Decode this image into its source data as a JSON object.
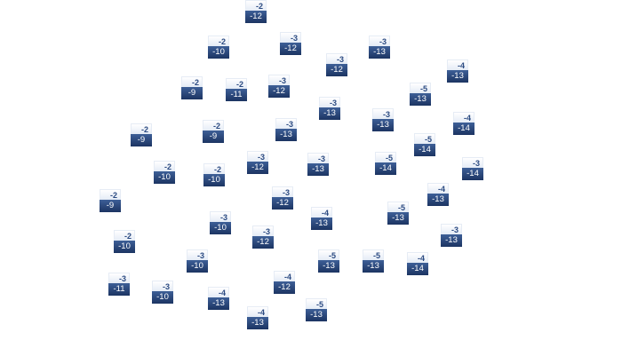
{
  "colors": {
    "label_top_text": "#2c4b82",
    "label_bottom_bg": "#1c3462",
    "label_bottom_text": "#ffffff"
  },
  "nodes": [
    {
      "a": "-2",
      "b": "-12"
    },
    {
      "a": "-2",
      "b": "-10"
    },
    {
      "a": "-3",
      "b": "-12"
    },
    {
      "a": "-3",
      "b": "-12"
    },
    {
      "a": "-3",
      "b": "-13"
    },
    {
      "a": "-4",
      "b": "-13"
    },
    {
      "a": "-2",
      "b": "-9"
    },
    {
      "a": "-2",
      "b": "-11"
    },
    {
      "a": "-3",
      "b": "-12"
    },
    {
      "a": "-5",
      "b": "-13"
    },
    {
      "a": "-3",
      "b": "-13"
    },
    {
      "a": "-3",
      "b": "-13"
    },
    {
      "a": "-4",
      "b": "-14"
    },
    {
      "a": "-2",
      "b": "-9"
    },
    {
      "a": "-2",
      "b": "-9"
    },
    {
      "a": "-3",
      "b": "-13"
    },
    {
      "a": "-5",
      "b": "-14"
    },
    {
      "a": "-3",
      "b": "-12"
    },
    {
      "a": "-3",
      "b": "-13"
    },
    {
      "a": "-5",
      "b": "-14"
    },
    {
      "a": "-3",
      "b": "-14"
    },
    {
      "a": "-2",
      "b": "-10"
    },
    {
      "a": "-2",
      "b": "-10"
    },
    {
      "a": "-3",
      "b": "-12"
    },
    {
      "a": "-4",
      "b": "-13"
    },
    {
      "a": "-2",
      "b": "-9"
    },
    {
      "a": "-4",
      "b": "-13"
    },
    {
      "a": "-5",
      "b": "-13"
    },
    {
      "a": "-3",
      "b": "-10"
    },
    {
      "a": "-3",
      "b": "-12"
    },
    {
      "a": "-3",
      "b": "-13"
    },
    {
      "a": "-2",
      "b": "-10"
    },
    {
      "a": "-3",
      "b": "-10"
    },
    {
      "a": "-5",
      "b": "-13"
    },
    {
      "a": "-5",
      "b": "-13"
    },
    {
      "a": "-4",
      "b": "-14"
    },
    {
      "a": "-3",
      "b": "-11"
    },
    {
      "a": "-3",
      "b": "-10"
    },
    {
      "a": "-4",
      "b": "-12"
    },
    {
      "a": "-4",
      "b": "-13"
    },
    {
      "a": "-5",
      "b": "-13"
    },
    {
      "a": "-4",
      "b": "-13"
    }
  ]
}
